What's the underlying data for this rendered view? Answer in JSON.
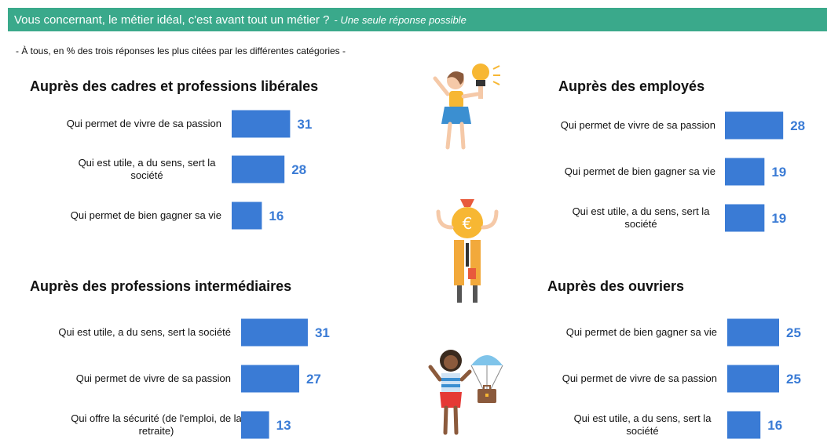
{
  "header": {
    "question": "Vous concernant, le métier idéal, c'est avant tout un métier ?",
    "note": "- Une seule réponse possible"
  },
  "subtitle": "- À tous, en % des trois réponses les plus citées par les différentes catégories -",
  "colors": {
    "header": "#3aa98b",
    "bar": "#3a7bd5",
    "value": "#3a7bd5"
  },
  "chart_data": [
    {
      "type": "bar",
      "title": "Auprès des cadres et professions libérales",
      "categories": [
        [
          "Qui permet de vivre de sa passion"
        ],
        [
          "Qui est utile, a du sens, sert la",
          "société"
        ],
        [
          "Qui permet de bien gagner sa vie"
        ]
      ],
      "values": [
        31,
        28,
        16
      ]
    },
    {
      "type": "bar",
      "title": "Auprès des employés",
      "categories": [
        [
          "Qui permet de vivre de sa passion"
        ],
        [
          "Qui permet de bien gagner sa vie"
        ],
        [
          "Qui est utile, a du sens, sert la",
          "société"
        ]
      ],
      "values": [
        28,
        19,
        19
      ]
    },
    {
      "type": "bar",
      "title": "Auprès des professions intermédiaires",
      "categories": [
        [
          "Qui est utile, a du sens, sert la société"
        ],
        [
          "Qui permet de vivre de sa passion"
        ],
        [
          "Qui offre la sécurité (de l'emploi, de la",
          "retraite)"
        ]
      ],
      "values": [
        31,
        27,
        13
      ]
    },
    {
      "type": "bar",
      "title": "Auprès des ouvriers",
      "categories": [
        [
          "Qui permet de bien gagner sa vie"
        ],
        [
          "Qui permet de vivre de sa passion"
        ],
        [
          "Qui est utile, a du sens, sert la",
          "société"
        ]
      ],
      "values": [
        25,
        25,
        16
      ]
    }
  ],
  "illustrations": [
    "woman-lightbulb-icon",
    "money-bag-person-icon",
    "person-parachute-briefcase-icon"
  ]
}
